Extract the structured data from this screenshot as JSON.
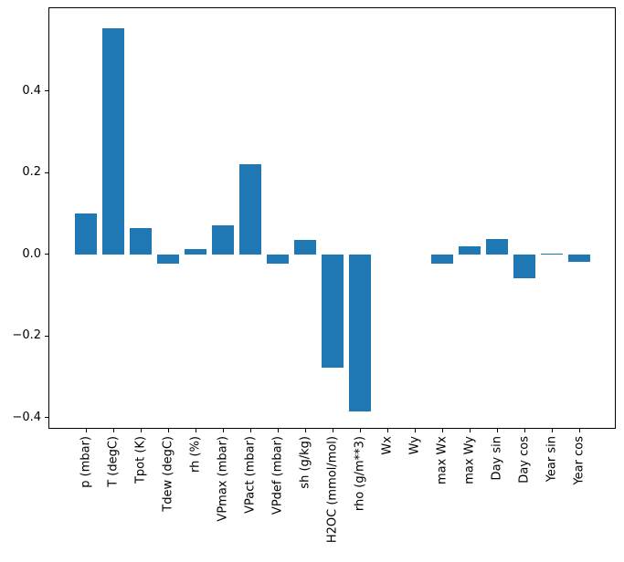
{
  "figure": {
    "background_color": "#ffffff",
    "frame_color": "#000000",
    "tick_color": "#000000",
    "text_color": "#000000"
  },
  "chart_data": {
    "type": "bar",
    "categories": [
      "p (mbar)",
      "T (degC)",
      "Tpot (K)",
      "Tdew (degC)",
      "rh (%)",
      "VPmax (mbar)",
      "VPact (mbar)",
      "VPdef (mbar)",
      "sh (g/kg)",
      "H2OC (mmol/mol)",
      "rho (g/m**3)",
      "Wx",
      "Wy",
      "max Wx",
      "max Wy",
      "Day sin",
      "Day cos",
      "Year sin",
      "Year cos"
    ],
    "values": [
      0.1,
      0.554,
      0.065,
      -0.022,
      0.013,
      0.071,
      0.221,
      -0.022,
      0.036,
      -0.277,
      -0.384,
      0.0,
      0.0,
      -0.022,
      0.019,
      0.038,
      -0.059,
      0.002,
      -0.019
    ],
    "bar_color": "#1f77b4",
    "ylim": [
      -0.425,
      0.603
    ],
    "ytick_values": [
      -0.4,
      -0.2,
      0.0,
      0.2,
      0.4
    ],
    "ytick_labels": [
      "−0.4",
      "−0.2",
      "0.0",
      "0.2",
      "0.4"
    ],
    "xtick_rotation": 90,
    "grid": false,
    "legend": null,
    "title": "",
    "xlabel": "",
    "ylabel": ""
  }
}
